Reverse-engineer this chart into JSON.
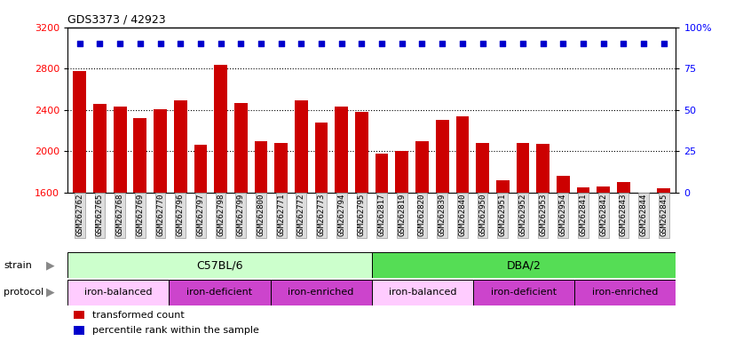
{
  "title": "GDS3373 / 42923",
  "samples": [
    "GSM262762",
    "GSM262765",
    "GSM262768",
    "GSM262769",
    "GSM262770",
    "GSM262796",
    "GSM262797",
    "GSM262798",
    "GSM262799",
    "GSM262800",
    "GSM262771",
    "GSM262772",
    "GSM262773",
    "GSM262794",
    "GSM262795",
    "GSM262817",
    "GSM262819",
    "GSM262820",
    "GSM262839",
    "GSM262840",
    "GSM262950",
    "GSM262951",
    "GSM262952",
    "GSM262953",
    "GSM262954",
    "GSM262841",
    "GSM262842",
    "GSM262843",
    "GSM262844",
    "GSM262845"
  ],
  "bar_values": [
    2780,
    2460,
    2430,
    2320,
    2410,
    2490,
    2060,
    2840,
    2470,
    2100,
    2080,
    2490,
    2280,
    2430,
    2380,
    1980,
    2000,
    2100,
    2300,
    2340,
    2080,
    1720,
    2080,
    2070,
    1760,
    1650,
    1660,
    1700,
    1600,
    1640
  ],
  "percentile_values": [
    90,
    90,
    90,
    90,
    90,
    90,
    90,
    90,
    90,
    90,
    90,
    90,
    90,
    90,
    90,
    90,
    90,
    90,
    90,
    90,
    90,
    90,
    90,
    90,
    90,
    90,
    90,
    90,
    90,
    90
  ],
  "ylim_left": [
    1600,
    3200
  ],
  "ylim_right": [
    0,
    100
  ],
  "yticks_left": [
    1600,
    2000,
    2400,
    2800,
    3200
  ],
  "yticks_right": [
    0,
    25,
    50,
    75,
    100
  ],
  "ytick_right_labels": [
    "0",
    "25",
    "50",
    "75",
    "100%"
  ],
  "bar_color": "#cc0000",
  "dot_color": "#0000cc",
  "strain_groups": [
    {
      "label": "C57BL/6",
      "start": 0,
      "end": 15,
      "color": "#ccffcc"
    },
    {
      "label": "DBA/2",
      "start": 15,
      "end": 30,
      "color": "#55dd55"
    }
  ],
  "protocol_groups": [
    {
      "label": "iron-balanced",
      "start": 0,
      "end": 5,
      "color": "#ffccff"
    },
    {
      "label": "iron-deficient",
      "start": 5,
      "end": 10,
      "color": "#cc44cc"
    },
    {
      "label": "iron-enriched",
      "start": 10,
      "end": 15,
      "color": "#cc44cc"
    },
    {
      "label": "iron-balanced",
      "start": 15,
      "end": 20,
      "color": "#ffccff"
    },
    {
      "label": "iron-deficient",
      "start": 20,
      "end": 25,
      "color": "#cc44cc"
    },
    {
      "label": "iron-enriched",
      "start": 25,
      "end": 30,
      "color": "#cc44cc"
    }
  ],
  "background_color": "#ffffff",
  "tick_label_fontsize": 6.5,
  "title_fontsize": 9,
  "grid_yticks": [
    2000,
    2400,
    2800
  ]
}
